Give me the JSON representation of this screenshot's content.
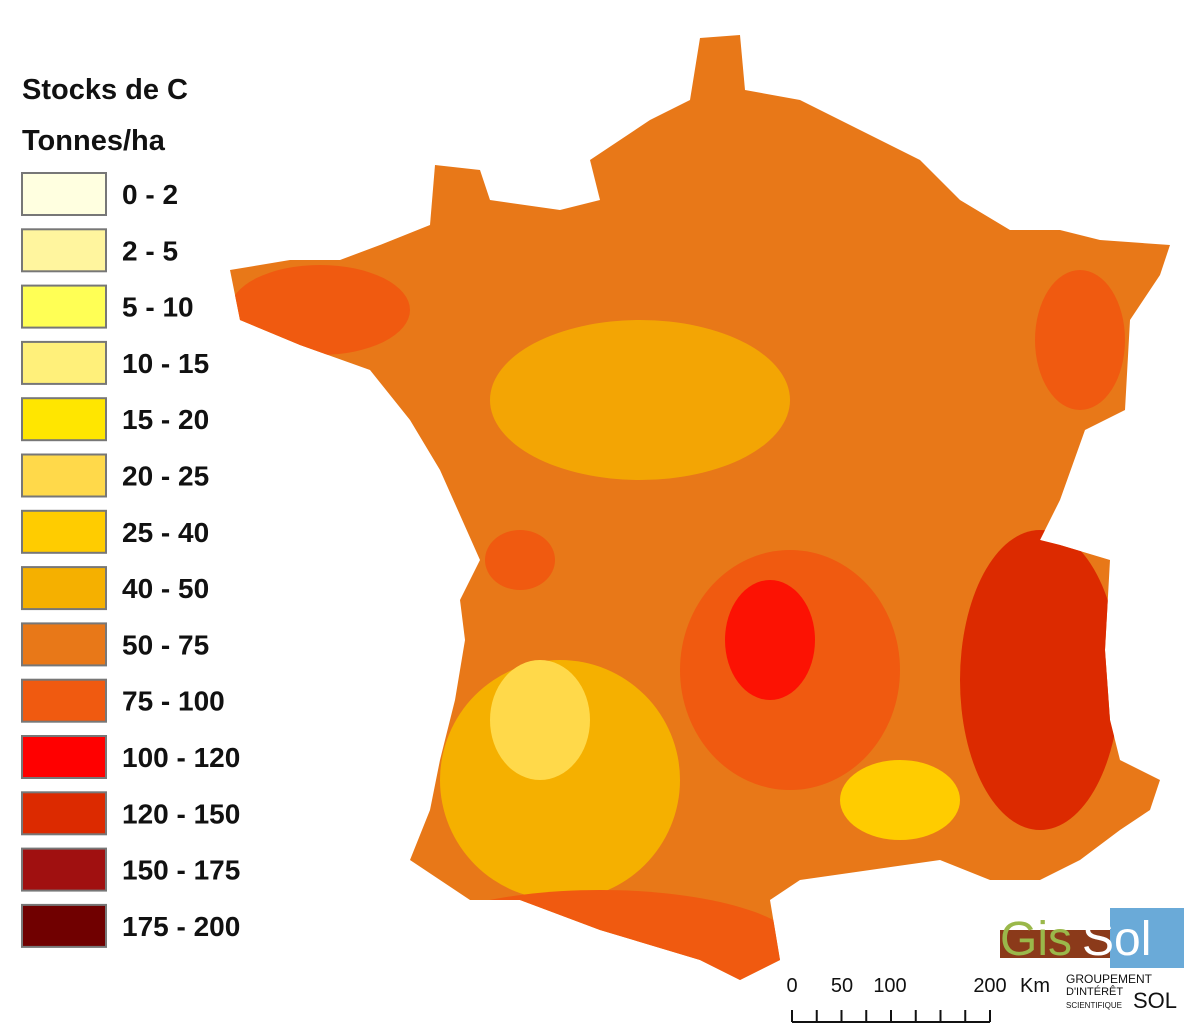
{
  "legend": {
    "title": "Stocks de C",
    "unit": "Tonnes/ha",
    "items": [
      {
        "label": "0 - 2",
        "color": "#ffffe0"
      },
      {
        "label": "2 - 5",
        "color": "#fff59e"
      },
      {
        "label": "5 - 10",
        "color": "#ffff55"
      },
      {
        "label": "10 - 15",
        "color": "#fff07a"
      },
      {
        "label": "15 - 20",
        "color": "#ffe600"
      },
      {
        "label": "20 - 25",
        "color": "#ffd94a"
      },
      {
        "label": "25 - 40",
        "color": "#ffcc00"
      },
      {
        "label": "40 - 50",
        "color": "#f5b000"
      },
      {
        "label": "50 - 75",
        "color": "#e87818"
      },
      {
        "label": "75 - 100",
        "color": "#f05a10"
      },
      {
        "label": "100 - 120",
        "color": "#ff0000"
      },
      {
        "label": "120 - 150",
        "color": "#dc2a00"
      },
      {
        "label": "150 - 175",
        "color": "#a01010"
      },
      {
        "label": "175 - 200",
        "color": "#700000"
      }
    ]
  },
  "scale_bar": {
    "ticks": [
      "0",
      "50",
      "100",
      "200"
    ],
    "unit": "Km"
  },
  "logo": {
    "name_left": "Gis",
    "name_right": "Sol",
    "line1": "GROUPEMENT",
    "line2": "D'INTÉRÊT",
    "line3": "SCIENTIFIQUE",
    "line4": "SOL"
  }
}
